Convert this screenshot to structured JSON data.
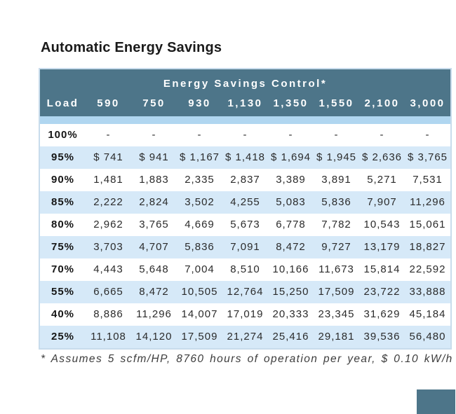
{
  "title": "Automatic Energy Savings",
  "table": {
    "group_header": "Energy Savings Control*",
    "columns": [
      "Load",
      "590",
      "750",
      "930",
      "1,130",
      "1,350",
      "1,550",
      "2,100",
      "3,000"
    ],
    "rows": [
      {
        "load": "100%",
        "values": [
          "-",
          "-",
          "-",
          "-",
          "-",
          "-",
          "-",
          "-"
        ]
      },
      {
        "load": "95%",
        "values": [
          "$ 741",
          "$ 941",
          "$ 1,167",
          "$ 1,418",
          "$ 1,694",
          "$ 1,945",
          "$ 2,636",
          "$ 3,765"
        ]
      },
      {
        "load": "90%",
        "values": [
          "1,481",
          "1,883",
          "2,335",
          "2,837",
          "3,389",
          "3,891",
          "5,271",
          "7,531"
        ]
      },
      {
        "load": "85%",
        "values": [
          "2,222",
          "2,824",
          "3,502",
          "4,255",
          "5,083",
          "5,836",
          "7,907",
          "11,296"
        ]
      },
      {
        "load": "80%",
        "values": [
          "2,962",
          "3,765",
          "4,669",
          "5,673",
          "6,778",
          "7,782",
          "10,543",
          "15,061"
        ]
      },
      {
        "load": "75%",
        "values": [
          "3,703",
          "4,707",
          "5,836",
          "7,091",
          "8,472",
          "9,727",
          "13,179",
          "18,827"
        ]
      },
      {
        "load": "70%",
        "values": [
          "4,443",
          "5,648",
          "7,004",
          "8,510",
          "10,166",
          "11,673",
          "15,814",
          "22,592"
        ]
      },
      {
        "load": "55%",
        "values": [
          "6,665",
          "8,472",
          "10,505",
          "12,764",
          "15,250",
          "17,509",
          "23,722",
          "33,888"
        ]
      },
      {
        "load": "40%",
        "values": [
          "8,886",
          "11,296",
          "14,007",
          "17,019",
          "20,333",
          "23,345",
          "31,629",
          "45,184"
        ]
      },
      {
        "load": "25%",
        "values": [
          "11,108",
          "14,120",
          "17,509",
          "21,274",
          "25,416",
          "29,181",
          "39,536",
          "56,480"
        ]
      }
    ]
  },
  "footnote": "* Assumes 5 scfm/HP, 8760 hours of operation per year, $ 0.10 kW/h",
  "colors": {
    "header_bg": "#4d7589",
    "band_bg": "#b0d6f0",
    "zebra_bg": "#d6e9f8",
    "row_white": "#ffffff",
    "border_color": "#c8dcec",
    "title_color": "#1a1a1a",
    "data_color": "#2b2b2b",
    "footnote_color": "#3c3c3c"
  }
}
